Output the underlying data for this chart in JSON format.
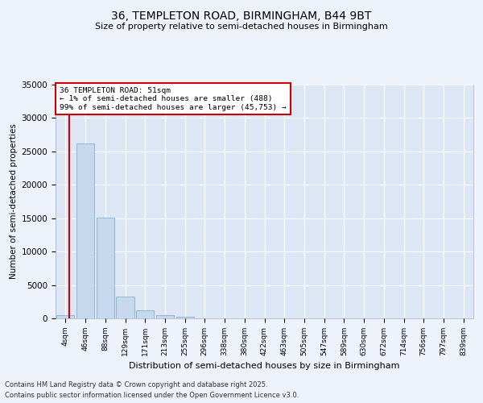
{
  "title_line1": "36, TEMPLETON ROAD, BIRMINGHAM, B44 9BT",
  "title_line2": "Size of property relative to semi-detached houses in Birmingham",
  "xlabel": "Distribution of semi-detached houses by size in Birmingham",
  "ylabel": "Number of semi-detached properties",
  "annotation_title": "36 TEMPLETON ROAD: 51sqm",
  "annotation_line2": "← 1% of semi-detached houses are smaller (488)",
  "annotation_line3": "99% of semi-detached houses are larger (45,753) →",
  "footer_line1": "Contains HM Land Registry data © Crown copyright and database right 2025.",
  "footer_line2": "Contains public sector information licensed under the Open Government Licence v3.0.",
  "categories": [
    "4sqm",
    "46sqm",
    "88sqm",
    "129sqm",
    "171sqm",
    "213sqm",
    "255sqm",
    "296sqm",
    "338sqm",
    "380sqm",
    "422sqm",
    "463sqm",
    "505sqm",
    "547sqm",
    "589sqm",
    "630sqm",
    "672sqm",
    "714sqm",
    "756sqm",
    "797sqm",
    "839sqm"
  ],
  "values": [
    488,
    26200,
    15100,
    3200,
    1200,
    450,
    200,
    50,
    0,
    0,
    0,
    0,
    0,
    0,
    0,
    0,
    0,
    0,
    0,
    0,
    0
  ],
  "bar_color": "#c5d8ec",
  "bar_edgecolor": "#8aaed0",
  "ylim": [
    0,
    35000
  ],
  "yticks": [
    0,
    5000,
    10000,
    15000,
    20000,
    25000,
    30000,
    35000
  ],
  "bg_color": "#eef2fa",
  "plot_bg_color": "#dce6f5",
  "grid_color": "#ffffff",
  "vline_color": "#cc0000",
  "vline_x": 0.18
}
